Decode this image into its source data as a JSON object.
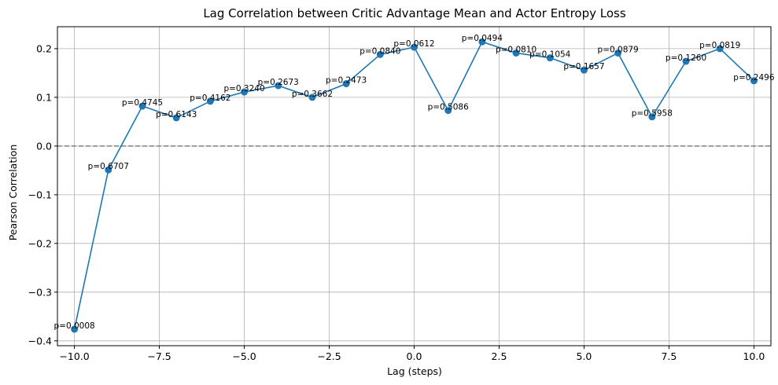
{
  "chart_data": {
    "type": "line",
    "title": "Lag Correlation between Critic Advantage Mean and Actor Entropy Loss",
    "xlabel": "Lag (steps)",
    "ylabel": "Pearson Correlation",
    "xlim": [
      -10.5,
      10.5
    ],
    "ylim": [
      -0.41,
      0.245
    ],
    "xticks": [
      -10.0,
      -7.5,
      -5.0,
      -2.5,
      0.0,
      2.5,
      5.0,
      7.5,
      10.0
    ],
    "xtick_labels": [
      "−10.0",
      "−7.5",
      "−5.0",
      "−2.5",
      "0.0",
      "2.5",
      "5.0",
      "7.5",
      "10.0"
    ],
    "yticks": [
      -0.4,
      -0.3,
      -0.2,
      -0.1,
      0.0,
      0.1,
      0.2
    ],
    "ytick_labels": [
      "−0.4",
      "−0.3",
      "−0.2",
      "−0.1",
      "0.0",
      "0.1",
      "0.2"
    ],
    "grid": true,
    "reference_line": {
      "y": 0.0,
      "style": "dashed",
      "color": "#808080"
    },
    "series_color": "#1f77b4",
    "x": [
      -10,
      -9,
      -8,
      -7,
      -6,
      -5,
      -4,
      -3,
      -2,
      -1,
      0,
      1,
      2,
      3,
      4,
      5,
      6,
      7,
      8,
      9,
      10
    ],
    "y": [
      -0.376,
      -0.049,
      0.082,
      0.058,
      0.092,
      0.111,
      0.124,
      0.1,
      0.128,
      0.188,
      0.203,
      0.073,
      0.214,
      0.191,
      0.181,
      0.156,
      0.191,
      0.06,
      0.174,
      0.2,
      0.134
    ],
    "annotations": [
      "p=0.0008",
      "p=0.6707",
      "p=0.4745",
      "p=0.6143",
      "p=0.4162",
      "p=0.3240",
      "p=0.2673",
      "p=0.3662",
      "p=0.2473",
      "p=0.0840",
      "p=0.0612",
      "p=0.5086",
      "p=0.0494",
      "p=0.0810",
      "p=0.1054",
      "p=0.1657",
      "p=0.0879",
      "p=0.5958",
      "p=0.1260",
      "p=0.0819",
      "p=0.2496"
    ]
  }
}
